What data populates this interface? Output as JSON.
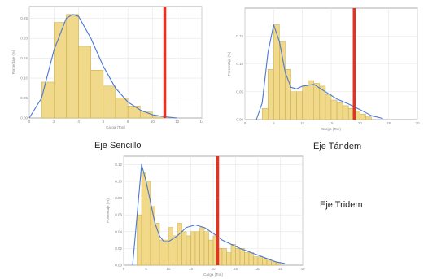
{
  "colors": {
    "bar_fill": "#f0d98a",
    "bar_stroke": "#c9a940",
    "curve": "#4a78d0",
    "threshold": "#e63222",
    "axis": "#999999",
    "grid": "#e6e6e6",
    "tick_text": "#888888"
  },
  "panels": [
    {
      "label": "Eje Sencillo"
    },
    {
      "label": "Eje Tándem"
    },
    {
      "label": "Eje Tridem"
    }
  ],
  "chart_data": [
    {
      "type": "bar",
      "xlabel": "Carga (Ton)",
      "ylabel": "Porcentaje (%)",
      "xlim": [
        0,
        14
      ],
      "ylim": [
        0,
        0.28
      ],
      "xticks": [
        "0",
        "2",
        "4",
        "6",
        "8",
        "10",
        "12",
        "14"
      ],
      "yticks": [
        "0.00",
        "0.05",
        "0.10",
        "0.15",
        "0.20",
        "0.25"
      ],
      "bin_width": 1,
      "bin_starts": [
        1,
        2,
        3,
        4,
        5,
        6,
        7,
        8,
        9,
        10
      ],
      "values": [
        0.09,
        0.24,
        0.26,
        0.18,
        0.12,
        0.08,
        0.05,
        0.03,
        0.015,
        0.005
      ],
      "curve_x": [
        0,
        1,
        2,
        3,
        3.5,
        4,
        5,
        6,
        7,
        8,
        9,
        10,
        11,
        12
      ],
      "curve_y": [
        0.0,
        0.05,
        0.17,
        0.25,
        0.26,
        0.255,
        0.2,
        0.13,
        0.075,
        0.04,
        0.02,
        0.008,
        0.003,
        0.0
      ],
      "threshold": 11
    },
    {
      "type": "bar",
      "xlabel": "Carga (Ton)",
      "ylabel": "Porcentaje (%)",
      "xlim": [
        0,
        30
      ],
      "ylim": [
        0,
        0.2
      ],
      "xticks": [
        "0",
        "5",
        "10",
        "15",
        "20",
        "25",
        "30"
      ],
      "yticks": [
        "0.00",
        "0.05",
        "0.10",
        "0.15"
      ],
      "bin_width": 1,
      "bin_starts": [
        3,
        4,
        5,
        6,
        7,
        8,
        9,
        10,
        11,
        12,
        13,
        14,
        15,
        16,
        17,
        18,
        19,
        20,
        21
      ],
      "values": [
        0.02,
        0.09,
        0.17,
        0.14,
        0.09,
        0.05,
        0.05,
        0.06,
        0.07,
        0.065,
        0.06,
        0.045,
        0.035,
        0.03,
        0.025,
        0.02,
        0.015,
        0.01,
        0.005
      ],
      "curve_x": [
        2,
        3,
        4,
        5,
        6,
        7,
        8,
        9,
        10,
        12,
        14,
        16,
        18,
        20,
        22,
        24
      ],
      "curve_y": [
        0.0,
        0.03,
        0.12,
        0.17,
        0.14,
        0.085,
        0.058,
        0.055,
        0.06,
        0.063,
        0.05,
        0.037,
        0.028,
        0.018,
        0.007,
        0.002
      ],
      "threshold": 19
    },
    {
      "type": "bar",
      "xlabel": "Carga (Ton)",
      "ylabel": "Porcentaje (%)",
      "xlim": [
        0,
        40
      ],
      "ylim": [
        0,
        0.13
      ],
      "xticks": [
        "0",
        "5",
        "10",
        "15",
        "20",
        "25",
        "30",
        "35",
        "40"
      ],
      "yticks": [
        "0.00",
        "0.02",
        "0.04",
        "0.06",
        "0.08",
        "0.10",
        "0.12"
      ],
      "bin_width": 1,
      "bin_starts": [
        3,
        4,
        5,
        6,
        7,
        8,
        9,
        10,
        11,
        12,
        13,
        14,
        15,
        16,
        17,
        18,
        19,
        20,
        21,
        22,
        23,
        24,
        25,
        26,
        27,
        28,
        29,
        30,
        31,
        32,
        33,
        34
      ],
      "values": [
        0.06,
        0.11,
        0.1,
        0.07,
        0.05,
        0.03,
        0.03,
        0.045,
        0.035,
        0.05,
        0.04,
        0.035,
        0.04,
        0.04,
        0.045,
        0.04,
        0.03,
        0.035,
        0.02,
        0.02,
        0.015,
        0.025,
        0.02,
        0.02,
        0.015,
        0.015,
        0.01,
        0.01,
        0.008,
        0.006,
        0.004,
        0.003
      ],
      "curve_x": [
        2,
        3,
        4,
        5,
        6,
        7,
        8,
        9,
        10,
        12,
        14,
        16,
        18,
        20,
        22,
        24,
        26,
        28,
        30,
        32,
        34,
        36
      ],
      "curve_y": [
        0.0,
        0.06,
        0.12,
        0.1,
        0.075,
        0.05,
        0.035,
        0.028,
        0.028,
        0.035,
        0.045,
        0.048,
        0.045,
        0.038,
        0.03,
        0.025,
        0.02,
        0.016,
        0.012,
        0.008,
        0.004,
        0.002
      ],
      "threshold": 21
    }
  ]
}
